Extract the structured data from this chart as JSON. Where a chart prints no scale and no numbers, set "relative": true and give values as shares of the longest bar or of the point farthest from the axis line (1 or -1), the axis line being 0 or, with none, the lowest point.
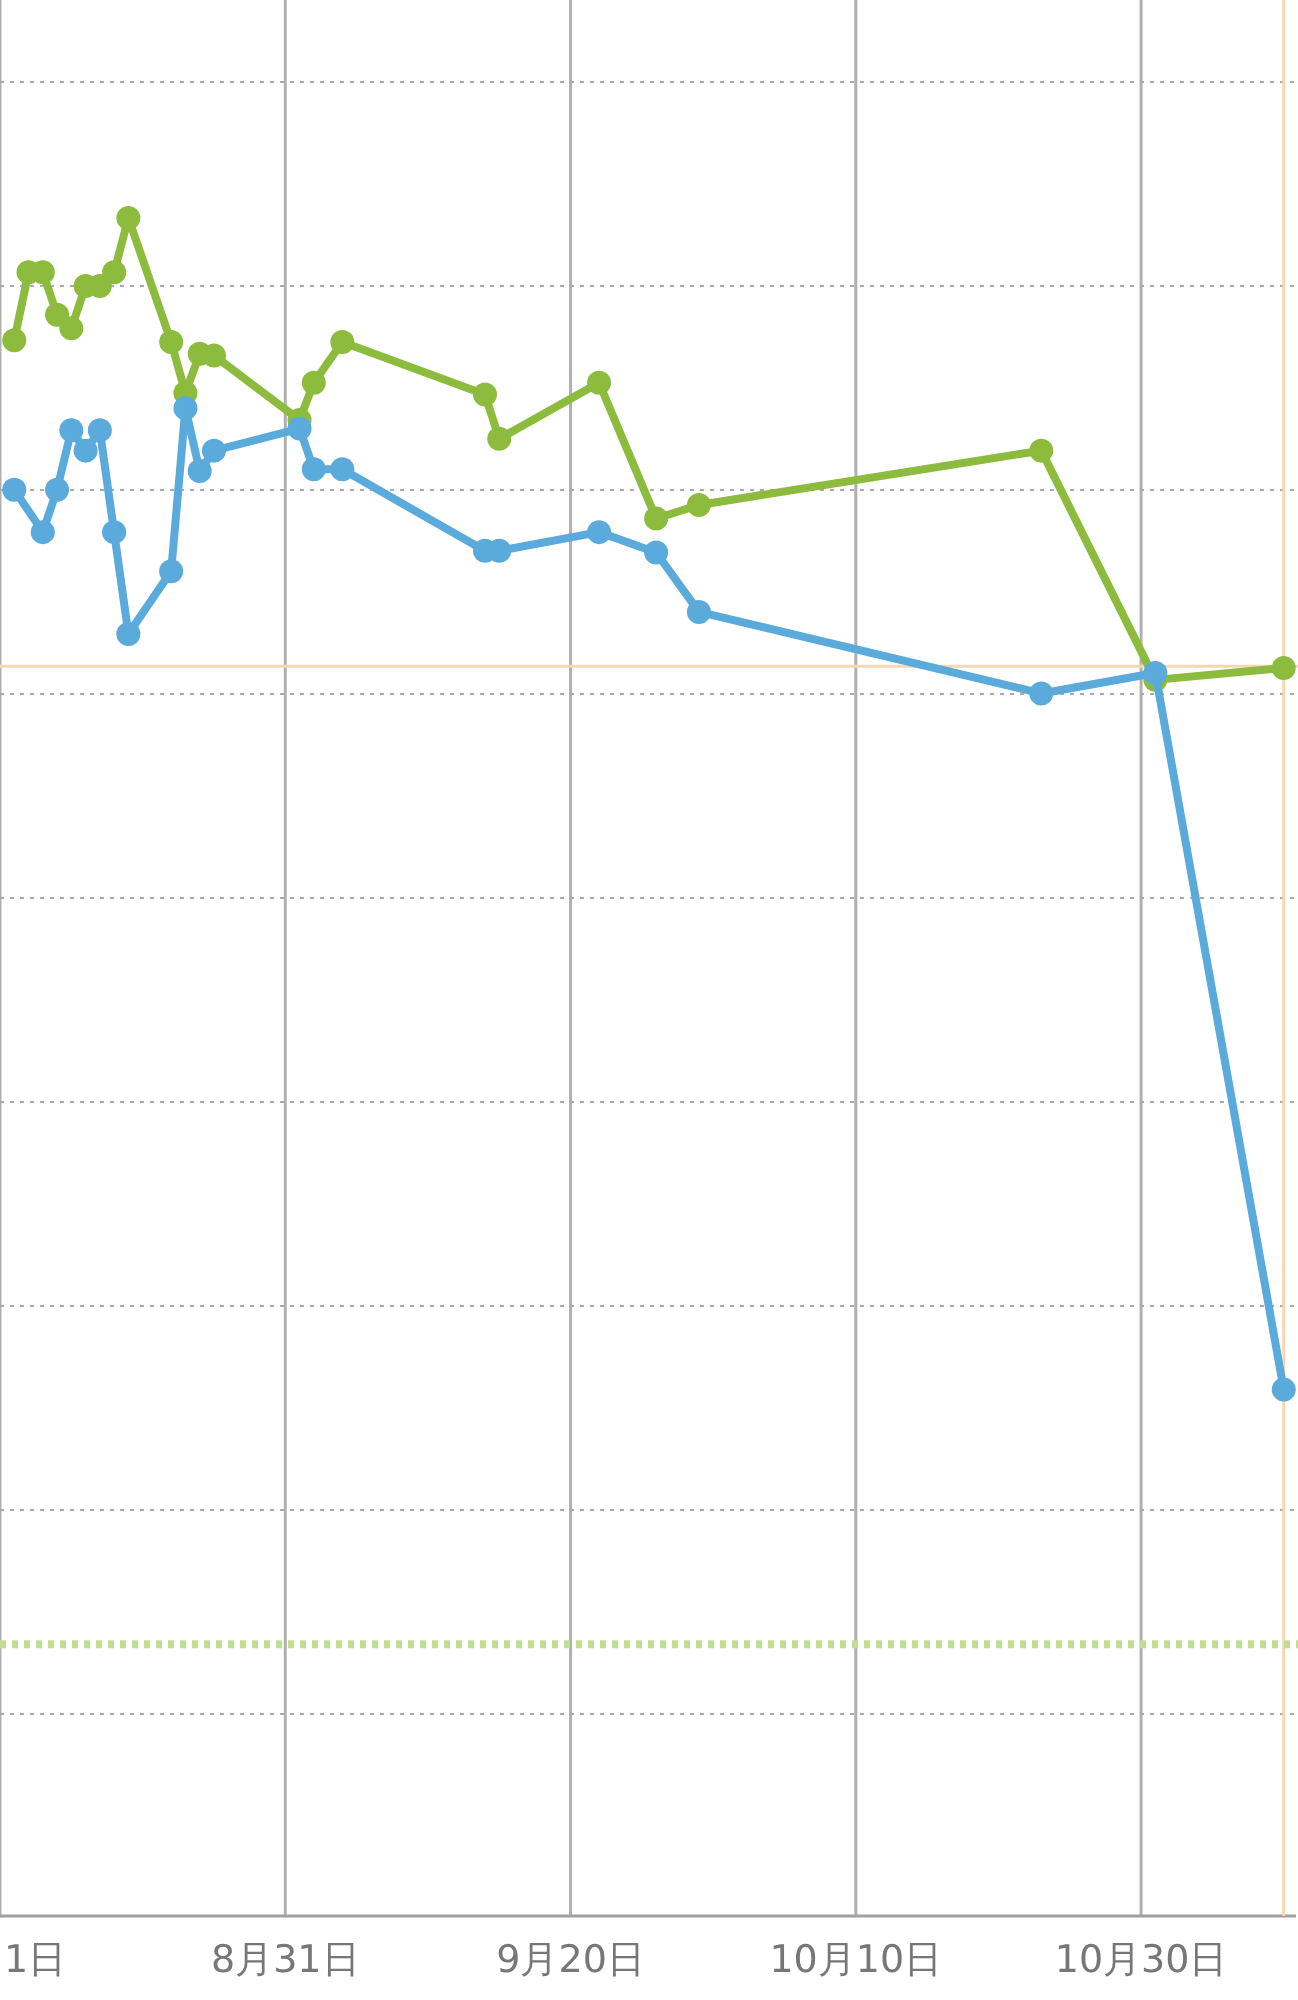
{
  "chart_data": {
    "type": "line",
    "relative": true,
    "xlim": [
      "--08-11",
      "--11-10"
    ],
    "xticks": [
      {
        "value": "--08-11",
        "label": "1日"
      },
      {
        "value": "--08-31",
        "label": "8月31日"
      },
      {
        "value": "--09-20",
        "label": "9月20日"
      },
      {
        "value": "--10-10",
        "label": "10月10日"
      },
      {
        "value": "--10-30",
        "label": "10月30日"
      }
    ],
    "grid": true,
    "marker": "circle",
    "line_style": "solid",
    "series": [
      {
        "color": "#8dbb3e",
        "x": [
          "--08-12",
          "--08-13",
          "--08-14",
          "--08-15",
          "--08-16",
          "--08-17",
          "--08-18",
          "--08-19",
          "--08-20",
          "--08-23",
          "--08-24",
          "--08-25",
          "--08-26",
          "--09-01",
          "--09-02",
          "--09-04",
          "--09-14",
          "--09-15",
          "--09-22",
          "--09-26",
          "--09-29",
          "--10-23",
          "--10-31",
          "--11-09"
        ],
        "values": [
          0.928,
          0.968,
          0.968,
          0.943,
          0.935,
          0.96,
          0.96,
          0.968,
          1.0,
          0.927,
          0.897,
          0.92,
          0.919,
          0.881,
          0.903,
          0.927,
          0.896,
          0.87,
          0.903,
          0.823,
          0.831,
          0.863,
          0.728,
          0.735
        ]
      },
      {
        "color": "#5aaadb",
        "x": [
          "--08-12",
          "--08-14",
          "--08-15",
          "--08-16",
          "--08-17",
          "--08-18",
          "--08-19",
          "--08-20",
          "--08-23",
          "--08-24",
          "--08-25",
          "--08-26",
          "--09-01",
          "--09-02",
          "--09-04",
          "--09-14",
          "--09-15",
          "--09-22",
          "--09-26",
          "--09-29",
          "--10-23",
          "--10-31",
          "--11-09"
        ],
        "values": [
          0.84,
          0.815,
          0.84,
          0.875,
          0.863,
          0.875,
          0.815,
          0.755,
          0.792,
          0.888,
          0.851,
          0.863,
          0.876,
          0.852,
          0.852,
          0.804,
          0.804,
          0.815,
          0.803,
          0.768,
          0.72,
          0.732,
          0.31
        ]
      }
    ],
    "ref_lines": [
      {
        "axis": "y",
        "value": 0.736,
        "color": "#f6d8b0"
      },
      {
        "axis": "x",
        "value": "--11-09",
        "color": "#f6d8b0"
      },
      {
        "axis": "y",
        "value": 0.16,
        "color": "#c3dc93",
        "line_style": "dotted"
      }
    ]
  }
}
